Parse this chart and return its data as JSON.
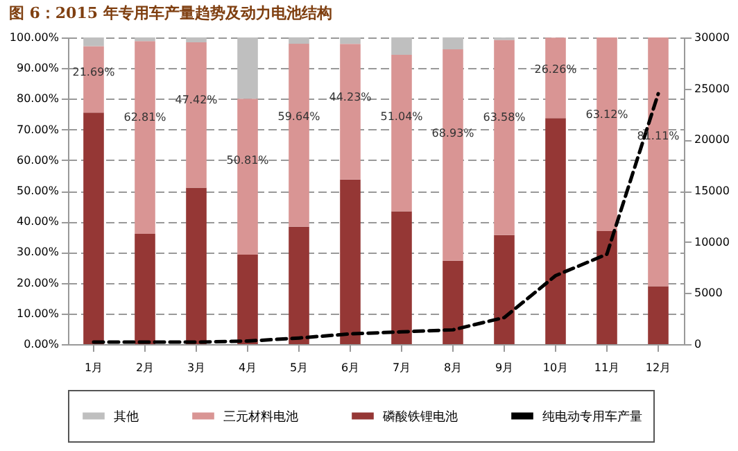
{
  "chart_data": {
    "type": "bar",
    "title": "图 6：2015 年专用车产量趋势及动力电池结构",
    "categories": [
      "1月",
      "2月",
      "3月",
      "4月",
      "5月",
      "6月",
      "7月",
      "8月",
      "9月",
      "10月",
      "11月",
      "12月"
    ],
    "stacked": true,
    "series": [
      {
        "name": "磷酸铁锂电池",
        "color": "#953735",
        "values": [
          75.5,
          36,
          51,
          29.2,
          38.3,
          53.7,
          43.3,
          27.2,
          35.6,
          73.7,
          36.9,
          18.9
        ]
      },
      {
        "name": "三元材料电池",
        "color": "#d99594",
        "values": [
          21.69,
          62.81,
          47.42,
          50.81,
          59.64,
          44.23,
          51.04,
          68.93,
          63.58,
          26.26,
          63.12,
          81.11
        ],
        "value_labels": [
          "21.69%",
          "62.81%",
          "47.42%",
          "50.81%",
          "59.64%",
          "44.23%",
          "51.04%",
          "68.93%",
          "63.58%",
          "26.26%",
          "63.12%",
          "81.11%"
        ]
      },
      {
        "name": "其他",
        "color": "#bfbfbf",
        "values": [
          2.8,
          1.2,
          1.6,
          20,
          2.1,
          2.1,
          5.7,
          3.9,
          0.8,
          0,
          0,
          0
        ]
      },
      {
        "name": "纯电动专用车产量",
        "type": "line",
        "axis": "y2",
        "color": "#000000",
        "line_style": "dashed",
        "values": [
          200,
          200,
          200,
          300,
          600,
          1000,
          1200,
          1400,
          2600,
          6700,
          8800,
          24500
        ]
      }
    ],
    "ylim": [
      0,
      100
    ],
    "yticks": [
      {
        "value": 0,
        "label": "0.00%"
      },
      {
        "value": 10,
        "label": "10.00%"
      },
      {
        "value": 20,
        "label": "20.00%"
      },
      {
        "value": 30,
        "label": "30.00%"
      },
      {
        "value": 40,
        "label": "40.00%"
      },
      {
        "value": 50,
        "label": "50.00%"
      },
      {
        "value": 60,
        "label": "60.00%"
      },
      {
        "value": 70,
        "label": "70.00%"
      },
      {
        "value": 80,
        "label": "80.00%"
      },
      {
        "value": 90,
        "label": "90.00%"
      },
      {
        "value": 100,
        "label": "100.00%"
      }
    ],
    "y2lim": [
      0,
      30000
    ],
    "y2ticks": [
      0,
      5000,
      10000,
      15000,
      20000,
      25000,
      30000
    ],
    "grid": "y",
    "legend": "bottom",
    "marker": "none"
  }
}
